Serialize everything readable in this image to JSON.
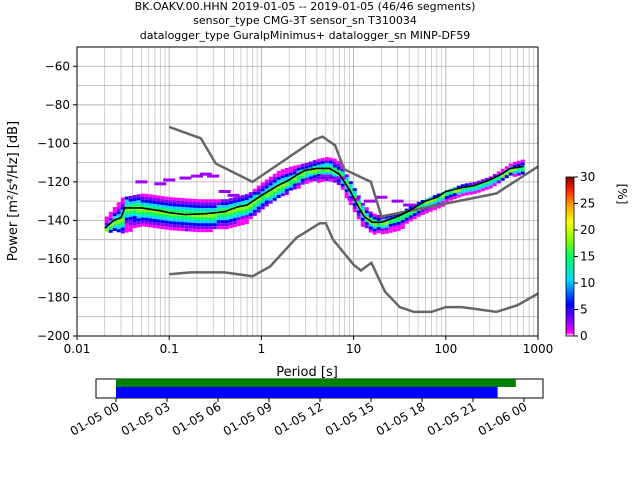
{
  "chart_data": {
    "type": "heatmap",
    "title_lines": [
      "BK.OAKV.00.HHN   2019-01-05 -- 2019-01-05  (46/46 segments)",
      "sensor_type CMG-3T sensor_sn T310034",
      "datalogger_type GuralpMinimus+ datalogger_sn MINP-DF59"
    ],
    "xlabel": "Period [s]",
    "ylabel": "Power [m²/s⁴/Hz] [dB]",
    "x_scale": "log",
    "xlim": [
      0.01,
      1000
    ],
    "ylim": [
      -200,
      -50
    ],
    "x_ticks": [
      {
        "value": 0.01,
        "label": "0.01"
      },
      {
        "value": 0.1,
        "label": "0.1"
      },
      {
        "value": 1,
        "label": "1"
      },
      {
        "value": 10,
        "label": "10"
      },
      {
        "value": 100,
        "label": "100"
      },
      {
        "value": 1000,
        "label": "1000"
      }
    ],
    "y_ticks": [
      {
        "value": -200,
        "label": "−200"
      },
      {
        "value": -180,
        "label": "−180"
      },
      {
        "value": -160,
        "label": "−160"
      },
      {
        "value": -140,
        "label": "−140"
      },
      {
        "value": -120,
        "label": "−120"
      },
      {
        "value": -100,
        "label": "−100"
      },
      {
        "value": -80,
        "label": "−80"
      },
      {
        "value": -60,
        "label": "−60"
      }
    ],
    "grid": true,
    "colorbar": {
      "label": "[%]",
      "range": [
        0,
        30
      ],
      "ticks": [
        {
          "value": 0,
          "label": "0"
        },
        {
          "value": 5,
          "label": "5"
        },
        {
          "value": 10,
          "label": "10"
        },
        {
          "value": 15,
          "label": "15"
        },
        {
          "value": 20,
          "label": "20"
        },
        {
          "value": 25,
          "label": "25"
        },
        {
          "value": 30,
          "label": "30"
        }
      ],
      "colors": [
        "#ffffff",
        "#ff00ff",
        "#7f00ff",
        "#0000ff",
        "#00d8ff",
        "#00ff60",
        "#80ff00",
        "#ffff00",
        "#ffa000",
        "#ff2000",
        "#800000"
      ]
    },
    "nlnm": [
      [
        0.1,
        -168
      ],
      [
        0.17,
        -167
      ],
      [
        0.4,
        -167
      ],
      [
        0.8,
        -169
      ],
      [
        1.24,
        -164
      ],
      [
        2.4,
        -149
      ],
      [
        4.3,
        -141.5
      ],
      [
        5,
        -141.5
      ],
      [
        6,
        -150
      ],
      [
        10,
        -163
      ],
      [
        12,
        -166
      ],
      [
        15.6,
        -162
      ],
      [
        21.9,
        -177
      ],
      [
        31.6,
        -185
      ],
      [
        45,
        -187.5
      ],
      [
        70,
        -187.5
      ],
      [
        100,
        -185
      ],
      [
        150,
        -185
      ],
      [
        354,
        -187.5
      ],
      [
        600,
        -184
      ],
      [
        1000,
        -178
      ]
    ],
    "nhnm": [
      [
        0.1,
        -91.5
      ],
      [
        0.22,
        -97.4
      ],
      [
        0.32,
        -110.5
      ],
      [
        0.8,
        -120
      ],
      [
        3.8,
        -98
      ],
      [
        4.6,
        -96.5
      ],
      [
        6.3,
        -101
      ],
      [
        7.9,
        -113.5
      ],
      [
        15.4,
        -120
      ],
      [
        20,
        -138
      ],
      [
        354.8,
        -126
      ],
      [
        1000,
        -112
      ]
    ],
    "mode_curve": [
      [
        0.02,
        -144
      ],
      [
        0.025,
        -140
      ],
      [
        0.03,
        -138.5
      ],
      [
        0.033,
        -133.5
      ],
      [
        0.05,
        -133.5
      ],
      [
        0.08,
        -135
      ],
      [
        0.1,
        -136
      ],
      [
        0.15,
        -137
      ],
      [
        0.25,
        -136.5
      ],
      [
        0.4,
        -135.5
      ],
      [
        0.55,
        -133
      ],
      [
        0.7,
        -132
      ],
      [
        1,
        -127
      ],
      [
        1.5,
        -122
      ],
      [
        2,
        -119
      ],
      [
        2.5,
        -116
      ],
      [
        3,
        -114
      ],
      [
        4,
        -113
      ],
      [
        5.5,
        -113
      ],
      [
        7,
        -116
      ],
      [
        9,
        -124
      ],
      [
        11,
        -132
      ],
      [
        13,
        -138
      ],
      [
        16,
        -141
      ],
      [
        20,
        -141
      ],
      [
        30,
        -138
      ],
      [
        40,
        -135
      ],
      [
        60,
        -130
      ],
      [
        80,
        -128
      ],
      [
        100,
        -125
      ],
      [
        150,
        -123
      ],
      [
        200,
        -122
      ],
      [
        300,
        -119
      ],
      [
        400,
        -116
      ],
      [
        500,
        -113
      ],
      [
        700,
        -112
      ]
    ],
    "density_bands": [
      {
        "x": [
          0.02,
          0.03,
          0.05,
          0.1,
          0.2,
          0.4,
          0.7,
          1,
          1.5,
          2,
          3,
          4,
          5,
          6,
          7,
          8,
          10,
          12,
          15,
          20,
          30,
          50,
          80,
          100,
          150,
          200,
          300,
          400,
          500,
          700
        ],
        "upper": [
          -138,
          -128,
          -126,
          -128,
          -129,
          -129,
          -126,
          -120,
          -114,
          -112,
          -110,
          -108,
          -107,
          -108,
          -110,
          -116,
          -124,
          -131,
          -136,
          -138,
          -136,
          -130,
          -126,
          -124,
          -121,
          -120,
          -117,
          -113,
          -110,
          -108
        ],
        "lower": [
          -145,
          -146,
          -142,
          -144,
          -145,
          -144,
          -140,
          -134,
          -128,
          -124,
          -120,
          -119,
          -119,
          -119,
          -121,
          -127,
          -136,
          -142,
          -146,
          -146,
          -144,
          -137,
          -133,
          -130,
          -127,
          -125,
          -122,
          -119,
          -116,
          -116
        ]
      }
    ],
    "scatter_outliers": [
      [
        0.05,
        -120
      ],
      [
        0.08,
        -121
      ],
      [
        0.1,
        -119
      ],
      [
        0.15,
        -118
      ],
      [
        0.2,
        -117
      ],
      [
        0.25,
        -116
      ],
      [
        0.3,
        -117
      ],
      [
        0.4,
        -125
      ],
      [
        0.5,
        -127
      ],
      [
        5,
        -117
      ],
      [
        7,
        -118
      ],
      [
        10,
        -129
      ],
      [
        15,
        -130
      ],
      [
        20,
        -128
      ],
      [
        30,
        -130
      ],
      [
        40,
        -132
      ]
    ]
  },
  "timeline": {
    "tick_labels": [
      "01-05 00",
      "01-05 03",
      "01-05 06",
      "01-05 09",
      "01-05 12",
      "01-05 15",
      "01-05 18",
      "01-05 21",
      "01-06 00"
    ],
    "data_fraction_green": 0.98,
    "data_fraction_blue": 0.955,
    "colors": {
      "green": "#008000",
      "blue": "#0000ff"
    }
  }
}
